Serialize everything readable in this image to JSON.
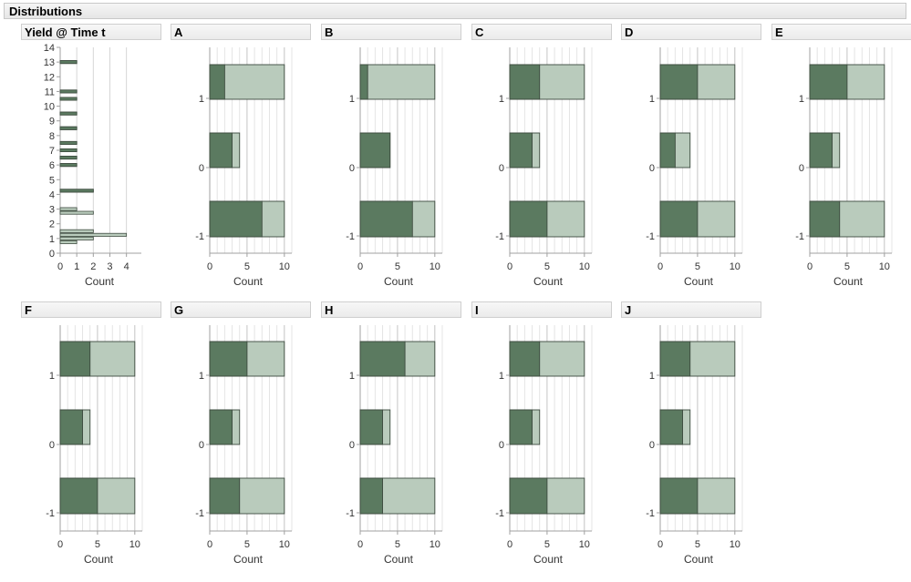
{
  "title": "Distributions",
  "chart_data": [
    {
      "type": "bar",
      "title": "Yield @ Time t",
      "orientation": "horizontal",
      "xlabel": "Count",
      "ylim": [
        0,
        14
      ],
      "yticks": [
        "0",
        "1",
        "2",
        "3",
        "4",
        "5",
        "6",
        "7",
        "8",
        "9",
        "10",
        "11",
        "12",
        "13",
        "14"
      ],
      "xticks": [
        "0",
        "1",
        "2",
        "3",
        "4"
      ],
      "xlim": [
        0,
        4.9
      ],
      "series": [
        {
          "name": "",
          "values": [
            {
              "y": 0.75,
              "total": 1,
              "highlight": 0
            },
            {
              "y": 1.0,
              "total": 2,
              "highlight": 0
            },
            {
              "y": 1.25,
              "total": 4,
              "highlight": 0
            },
            {
              "y": 1.5,
              "total": 2,
              "highlight": 0
            },
            {
              "y": 2.75,
              "total": 2,
              "highlight": 0
            },
            {
              "y": 3.0,
              "total": 1,
              "highlight": 0
            },
            {
              "y": 4.25,
              "total": 2,
              "highlight": 2
            },
            {
              "y": 6.0,
              "total": 1,
              "highlight": 1
            },
            {
              "y": 6.5,
              "total": 1,
              "highlight": 1
            },
            {
              "y": 7.0,
              "total": 1,
              "highlight": 1
            },
            {
              "y": 7.5,
              "total": 1,
              "highlight": 1
            },
            {
              "y": 8.5,
              "total": 1,
              "highlight": 1
            },
            {
              "y": 9.5,
              "total": 1,
              "highlight": 1
            },
            {
              "y": 10.5,
              "total": 1,
              "highlight": 1
            },
            {
              "y": 11.0,
              "total": 1,
              "highlight": 1
            },
            {
              "y": 13.0,
              "total": 1,
              "highlight": 1
            }
          ]
        }
      ]
    },
    {
      "type": "bar",
      "orientation": "horizontal",
      "title": "A",
      "xlabel": "Count",
      "xticks": [
        "0",
        "5",
        "10"
      ],
      "categories": [
        "-1",
        "0",
        "1"
      ],
      "totals": [
        10,
        4,
        10
      ],
      "highlighted": [
        7,
        3,
        2
      ]
    },
    {
      "type": "bar",
      "orientation": "horizontal",
      "title": "B",
      "xlabel": "Count",
      "xticks": [
        "0",
        "5",
        "10"
      ],
      "categories": [
        "-1",
        "0",
        "1"
      ],
      "totals": [
        10,
        4,
        10
      ],
      "highlighted": [
        7,
        4,
        1
      ]
    },
    {
      "type": "bar",
      "orientation": "horizontal",
      "title": "C",
      "xlabel": "Count",
      "xticks": [
        "0",
        "5",
        "10"
      ],
      "categories": [
        "-1",
        "0",
        "1"
      ],
      "totals": [
        10,
        4,
        10
      ],
      "highlighted": [
        5,
        3,
        4
      ]
    },
    {
      "type": "bar",
      "orientation": "horizontal",
      "title": "D",
      "xlabel": "Count",
      "xticks": [
        "0",
        "5",
        "10"
      ],
      "categories": [
        "-1",
        "0",
        "1"
      ],
      "totals": [
        10,
        4,
        10
      ],
      "highlighted": [
        5,
        2,
        5
      ]
    },
    {
      "type": "bar",
      "orientation": "horizontal",
      "title": "E",
      "xlabel": "Count",
      "xticks": [
        "0",
        "5",
        "10"
      ],
      "categories": [
        "-1",
        "0",
        "1"
      ],
      "totals": [
        10,
        4,
        10
      ],
      "highlighted": [
        4,
        3,
        5
      ]
    },
    {
      "type": "bar",
      "orientation": "horizontal",
      "title": "F",
      "xlabel": "Count",
      "xticks": [
        "0",
        "5",
        "10"
      ],
      "categories": [
        "-1",
        "0",
        "1"
      ],
      "totals": [
        10,
        4,
        10
      ],
      "highlighted": [
        5,
        3,
        4
      ]
    },
    {
      "type": "bar",
      "orientation": "horizontal",
      "title": "G",
      "xlabel": "Count",
      "xticks": [
        "0",
        "5",
        "10"
      ],
      "categories": [
        "-1",
        "0",
        "1"
      ],
      "totals": [
        10,
        4,
        10
      ],
      "highlighted": [
        4,
        3,
        5
      ]
    },
    {
      "type": "bar",
      "orientation": "horizontal",
      "title": "H",
      "xlabel": "Count",
      "xticks": [
        "0",
        "5",
        "10"
      ],
      "categories": [
        "-1",
        "0",
        "1"
      ],
      "totals": [
        10,
        4,
        10
      ],
      "highlighted": [
        3,
        3,
        6
      ]
    },
    {
      "type": "bar",
      "orientation": "horizontal",
      "title": "I",
      "xlabel": "Count",
      "xticks": [
        "0",
        "5",
        "10"
      ],
      "categories": [
        "-1",
        "0",
        "1"
      ],
      "totals": [
        10,
        4,
        10
      ],
      "highlighted": [
        5,
        3,
        4
      ]
    },
    {
      "type": "bar",
      "orientation": "horizontal",
      "title": "J",
      "xlabel": "Count",
      "xticks": [
        "0",
        "5",
        "10"
      ],
      "categories": [
        "-1",
        "0",
        "1"
      ],
      "totals": [
        10,
        4,
        10
      ],
      "highlighted": [
        5,
        3,
        4
      ]
    }
  ],
  "colors": {
    "highlight": "#5b7a60",
    "base": "#b9cbbc",
    "outline": "#3c4a3e",
    "grid": "#d6d6d6",
    "frame": "#a0a0a0"
  }
}
